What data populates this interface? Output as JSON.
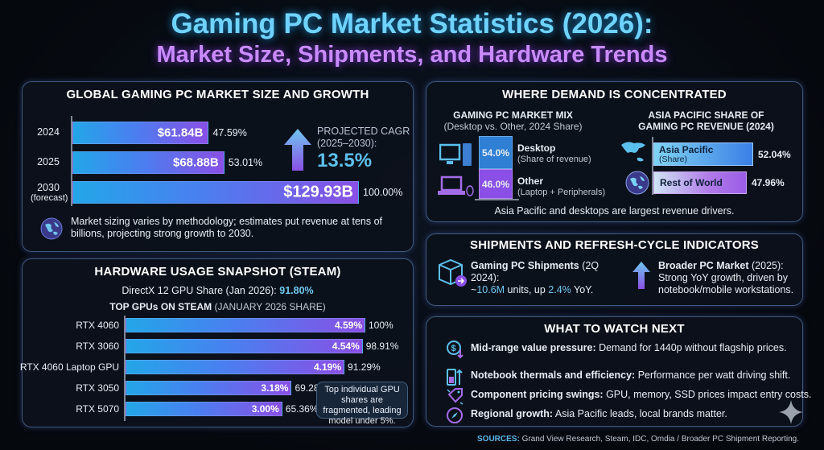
{
  "title": {
    "line1": "Gaming PC Market Statistics (2026):",
    "line2": "Market Size, Shipments, and Hardware Trends"
  },
  "market": {
    "title": "GLOBAL GAMING PC MARKET SIZE AND GROWTH",
    "cagr_label1": "PROJECTED CAGR",
    "cagr_label2": "(2025–2030):",
    "cagr_value": "13.5%",
    "note": "Market sizing varies by methodology; estimates put revenue at tens of billions, projecting strong growth to 2030.",
    "forecast_label": "(forecast)"
  },
  "hardware": {
    "title": "HARDWARE USAGE SNAPSHOT (STEAM)",
    "dx12_label": "DirectX 12 GPU Share (Jan 2026): ",
    "dx12_value": "91.80%",
    "top_title": "TOP GPUs ON STEAM",
    "top_sub": " (JANUARY 2026 SHARE)",
    "tooltip": "Top individual GPU shares are fragmented, leading model under 5%."
  },
  "demand": {
    "title": "WHERE DEMAND IS CONCENTRATED",
    "mix_title": "GAMING PC MARKET MIX",
    "mix_sub": "(Desktop vs. Other, 2024 Share)",
    "desktop_label": "Desktop",
    "desktop_sub": "(Share of revenue)",
    "desktop_value": "54.0%",
    "other_label": "Other",
    "other_sub": "(Laptop + Peripherals)",
    "other_value": "46.0%",
    "ap_title1": "ASIA PACIFIC SHARE OF",
    "ap_title2": "GAMING PC REVENUE (2024)",
    "ap_label": "Asia Pacific",
    "ap_sub": "(Share)",
    "ap_value": "52.04%",
    "row_label": "Rest of World",
    "row_value": "47.96%",
    "footer": "Asia Pacific and desktops are largest revenue drivers."
  },
  "shipments": {
    "title": "SHIPMENTS AND REFRESH-CYCLE INDICATORS",
    "left_bold": "Gaming PC Shipments",
    "left_period": " (2Q 2024):",
    "left_tilde": "~",
    "left_units": "10.6M",
    "left_mid": " units, up ",
    "left_pct": "2.4%",
    "left_end": " YoY.",
    "right_bold": "Broader PC Market",
    "right_period": " (2025):",
    "right_text": "Strong YoY growth, driven by notebook/mobile workstations."
  },
  "watch": {
    "title": "WHAT TO WATCH NEXT",
    "items": [
      {
        "bold": "Mid-range value pressure:",
        "text": " Demand for 1440p without flagship prices.",
        "icon": "dollar-down-icon"
      },
      {
        "bold": "Notebook thermals and efficiency:",
        "text": " Performance per watt driving shift.",
        "icon": "battery-up-icon"
      },
      {
        "bold": "Component pricing swings:",
        "text": " GPU, memory, SSD prices impact entry costs.",
        "icon": "price-tag-icon"
      },
      {
        "bold": "Regional growth:",
        "text": " Asia Pacific leads, local brands matter.",
        "icon": "compass-icon"
      }
    ]
  },
  "sources": {
    "label": "SOURCES:",
    "text": " Grand View Research, Steam, IDC, Omdia / Broader PC Shipment Reporting."
  },
  "colors": {
    "title_cyan": "#6fd3ff",
    "title_purple": "#c98bff",
    "bar_start": "#23a6e8",
    "bar_end": "#8a4fe6"
  },
  "chart_data": [
    {
      "type": "bar",
      "orientation": "horizontal",
      "title": "GLOBAL GAMING PC MARKET SIZE AND GROWTH",
      "categories": [
        "2024",
        "2025",
        "2030"
      ],
      "values": [
        61.84,
        68.88,
        129.93
      ],
      "value_labels": [
        "$61.84B",
        "$68.88B",
        "$129.93B"
      ],
      "relative_labels": [
        "47.59%",
        "53.01%",
        "100.00%"
      ],
      "unit": "$B"
    },
    {
      "type": "bar",
      "orientation": "horizontal",
      "title": "TOP GPUs ON STEAM (JANUARY 2026 SHARE)",
      "categories": [
        "RTX 4060",
        "RTX 3060",
        "RTX 4060 Laptop GPU",
        "RTX 3050",
        "RTX 5070"
      ],
      "values": [
        4.59,
        4.54,
        4.19,
        3.18,
        3.0
      ],
      "value_labels": [
        "4.59%",
        "4.54%",
        "4.19%",
        "3.18%",
        "3.00%"
      ],
      "relative_labels": [
        "100%",
        "98.91%",
        "91.29%",
        "69.28%",
        "65.36%"
      ],
      "unit": "%"
    },
    {
      "type": "bar",
      "orientation": "stacked",
      "title": "GAMING PC MARKET MIX",
      "categories": [
        "Desktop",
        "Other"
      ],
      "values": [
        54.0,
        46.0
      ],
      "unit": "%"
    },
    {
      "type": "bar",
      "orientation": "horizontal",
      "title": "ASIA PACIFIC SHARE OF GAMING PC REVENUE (2024)",
      "categories": [
        "Asia Pacific",
        "Rest of World"
      ],
      "values": [
        52.04,
        47.96
      ],
      "unit": "%"
    }
  ]
}
